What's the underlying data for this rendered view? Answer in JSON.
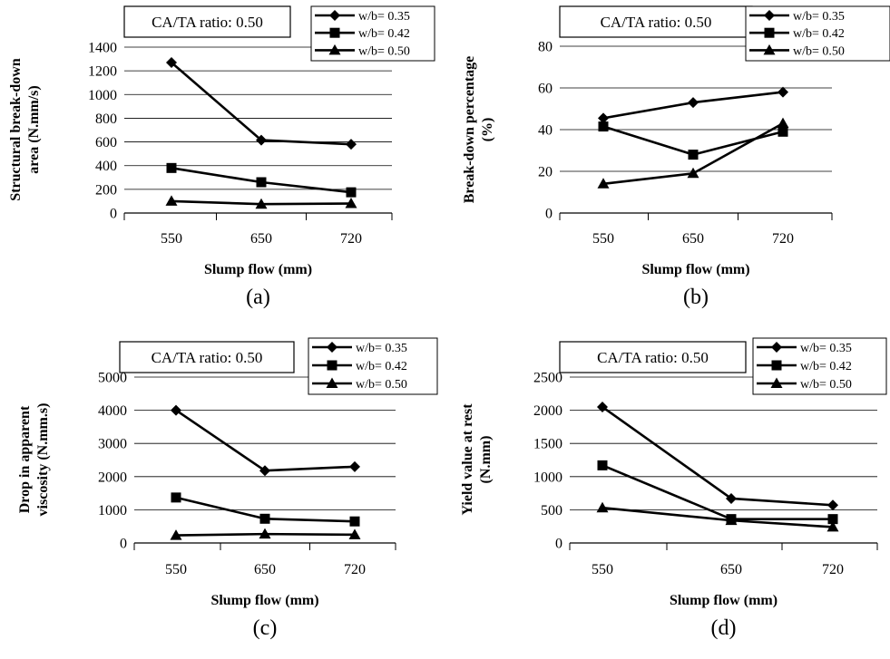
{
  "chart_data": [
    {
      "type": "line",
      "panel_label": "(a)",
      "annotation": "CA/TA ratio: 0.50",
      "xlabel": "Slump flow (mm)",
      "ylabel": [
        "Structural break-down",
        "area (N.mm/s)"
      ],
      "categories": [
        "550",
        "650",
        "720"
      ],
      "ylim": [
        0,
        1400
      ],
      "yticks": [
        "0",
        "200",
        "400",
        "600",
        "800",
        "1000",
        "1200",
        "1400"
      ],
      "grid": "horizontal",
      "legend_position": "top-right",
      "series": [
        {
          "name": "w/b= 0.35",
          "marker": "diamond",
          "values": [
            1270,
            615,
            580
          ]
        },
        {
          "name": "w/b= 0.42",
          "marker": "square",
          "values": [
            380,
            260,
            175
          ]
        },
        {
          "name": "w/b= 0.50",
          "marker": "triangle",
          "values": [
            100,
            75,
            80
          ]
        }
      ]
    },
    {
      "type": "line",
      "panel_label": "(b)",
      "annotation": "CA/TA ratio: 0.50",
      "xlabel": "Slump flow (mm)",
      "ylabel": [
        "Break-down percentage",
        "(%)"
      ],
      "categories": [
        "550",
        "650",
        "720"
      ],
      "ylim": [
        0,
        80
      ],
      "yticks": [
        "0",
        "20",
        "40",
        "60",
        "80"
      ],
      "grid": "horizontal",
      "legend_position": "top-right",
      "series": [
        {
          "name": "w/b= 0.35",
          "marker": "diamond",
          "values": [
            45.5,
            53,
            58
          ]
        },
        {
          "name": "w/b= 0.42",
          "marker": "square",
          "values": [
            41.5,
            28,
            39
          ]
        },
        {
          "name": "w/b= 0.50",
          "marker": "triangle",
          "values": [
            14,
            19,
            43
          ]
        }
      ]
    },
    {
      "type": "line",
      "panel_label": "(c)",
      "annotation": "CA/TA ratio: 0.50",
      "xlabel": "Slump flow (mm)",
      "ylabel": [
        "Drop in apparent",
        "viscosity (N.mm.s)"
      ],
      "categories": [
        "550",
        "650",
        "720"
      ],
      "ylim": [
        0,
        5000
      ],
      "yticks": [
        "0",
        "1000",
        "2000",
        "3000",
        "4000",
        "5000"
      ],
      "grid": "horizontal",
      "legend_position": "top-right",
      "series": [
        {
          "name": "w/b= 0.35",
          "marker": "diamond",
          "values": [
            4000,
            2180,
            2300
          ]
        },
        {
          "name": "w/b= 0.42",
          "marker": "square",
          "values": [
            1370,
            730,
            650
          ]
        },
        {
          "name": "w/b= 0.50",
          "marker": "triangle",
          "values": [
            230,
            270,
            250
          ]
        }
      ]
    },
    {
      "type": "line",
      "panel_label": "(d)",
      "annotation": "CA/TA ratio: 0.50",
      "xlabel": "Slump flow (mm)",
      "ylabel": [
        "Yield value at rest",
        "(N.mm)"
      ],
      "categories": [
        "550",
        "650",
        "720"
      ],
      "ylim": [
        0,
        2500
      ],
      "yticks": [
        "0",
        "500",
        "1000",
        "1500",
        "2000",
        "2500"
      ],
      "grid": "horizontal",
      "legend_position": "top-right",
      "series": [
        {
          "name": "w/b= 0.35",
          "marker": "diamond",
          "values": [
            2050,
            670,
            570
          ]
        },
        {
          "name": "w/b= 0.42",
          "marker": "square",
          "values": [
            1170,
            360,
            360
          ]
        },
        {
          "name": "w/b= 0.50",
          "marker": "triangle",
          "values": [
            530,
            340,
            240
          ]
        }
      ]
    }
  ]
}
